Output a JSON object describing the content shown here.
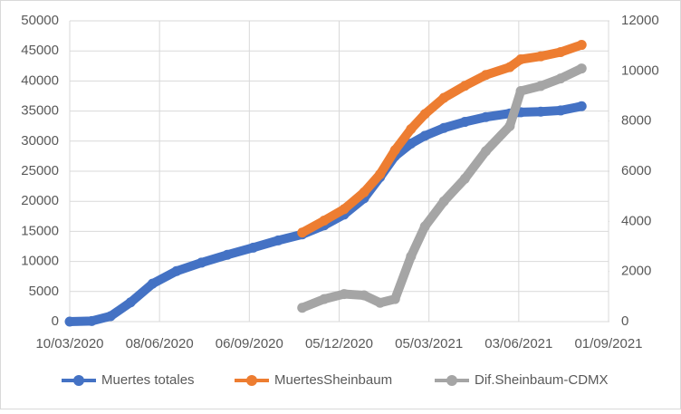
{
  "chart_data": {
    "type": "line",
    "x": [
      "2020-03-10",
      "2020-04-01",
      "2020-04-20",
      "2020-05-10",
      "2020-06-01",
      "2020-06-25",
      "2020-07-20",
      "2020-08-15",
      "2020-09-10",
      "2020-10-05",
      "2020-10-29",
      "2020-11-20",
      "2020-12-10",
      "2020-12-30",
      "2021-01-15",
      "2021-01-30",
      "2021-02-15",
      "2021-03-01",
      "2021-03-20",
      "2021-04-10",
      "2021-05-01",
      "2021-05-25",
      "2021-06-05",
      "2021-06-25",
      "2021-07-15",
      "2021-08-05"
    ],
    "series": [
      {
        "name": "Muertes totales",
        "color": "#4472c4",
        "values": [
          0,
          100,
          900,
          3200,
          6300,
          8400,
          9800,
          11100,
          12300,
          13500,
          14500,
          16000,
          17800,
          20500,
          24000,
          27500,
          29600,
          30900,
          32200,
          33200,
          34000,
          34600,
          34800,
          34900,
          35100,
          35800
        ]
      },
      {
        "name": "MuertesSheinbaum",
        "color": "#ed7d31",
        "values": [
          null,
          null,
          null,
          null,
          null,
          null,
          null,
          null,
          null,
          null,
          14800,
          16800,
          18700,
          21500,
          24500,
          28500,
          32000,
          34500,
          37200,
          39200,
          41000,
          42300,
          43600,
          44100,
          44800,
          46000
        ]
      },
      {
        "name": "Dif.Sheinbaum-CDMX",
        "color": "#a5a5a5",
        "axis": "y2",
        "values": [
          null,
          null,
          null,
          null,
          null,
          null,
          null,
          null,
          null,
          null,
          550,
          900,
          1100,
          1050,
          750,
          900,
          2600,
          3800,
          4800,
          5700,
          6800,
          7800,
          9200,
          9400,
          9700,
          10100
        ]
      }
    ],
    "xlim": [
      "2020-03-10",
      "2021-09-01"
    ],
    "xticks": [
      {
        "value": "2020-03-10",
        "label": "10/03/2020"
      },
      {
        "value": "2020-06-08",
        "label": "08/06/2020"
      },
      {
        "value": "2020-09-06",
        "label": "06/09/2020"
      },
      {
        "value": "2020-12-05",
        "label": "05/12/2020"
      },
      {
        "value": "2021-03-05",
        "label": "05/03/2021"
      },
      {
        "value": "2021-06-03",
        "label": "03/06/2021"
      },
      {
        "value": "2021-09-01",
        "label": "01/09/2021"
      }
    ],
    "ylim": [
      0,
      50000
    ],
    "yticks": [
      0,
      5000,
      10000,
      15000,
      20000,
      25000,
      30000,
      35000,
      40000,
      45000,
      50000
    ],
    "y2lim": [
      0,
      12000
    ],
    "y2ticks": [
      0,
      2000,
      4000,
      6000,
      8000,
      10000,
      12000
    ],
    "grid": true,
    "legend": "bottom"
  }
}
